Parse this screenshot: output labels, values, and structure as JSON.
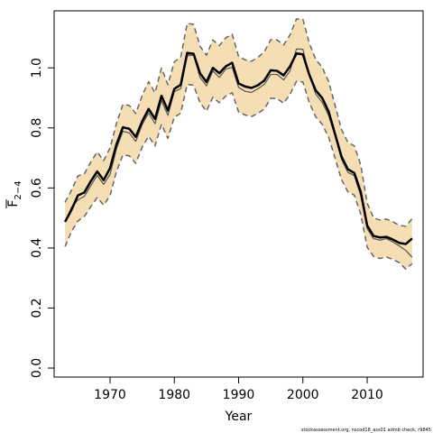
{
  "chart_data": {
    "type": "line",
    "title": "",
    "xlabel": "Year",
    "ylabel": "F",
    "ylabel_subscript": "2−4",
    "footnote": "stockassessment.org, nscod18_ass01 admb check, r9845",
    "xlim": [
      1961.3,
      2018.7
    ],
    "ylim": [
      -0.03,
      1.19
    ],
    "xticks": [
      1970,
      1980,
      1990,
      2000,
      2010
    ],
    "yticks": [
      0.0,
      0.2,
      0.4,
      0.6,
      0.8,
      1.0
    ],
    "ytick_labels": [
      "0.0",
      "0.2",
      "0.4",
      "0.6",
      "0.8",
      "1.0"
    ],
    "band_color": "#f5deb3",
    "x": [
      1963,
      1964,
      1965,
      1966,
      1967,
      1968,
      1969,
      1970,
      1971,
      1972,
      1973,
      1974,
      1975,
      1976,
      1977,
      1978,
      1979,
      1980,
      1981,
      1982,
      1983,
      1984,
      1985,
      1986,
      1987,
      1988,
      1989,
      1990,
      1991,
      1992,
      1993,
      1994,
      1995,
      1996,
      1997,
      1998,
      1999,
      2000,
      2001,
      2002,
      2003,
      2004,
      2005,
      2006,
      2007,
      2008,
      2009,
      2010,
      2011,
      2012,
      2013,
      2014,
      2015,
      2016,
      2017
    ],
    "series": [
      {
        "role": "estimate",
        "color": "#000000",
        "values": [
          0.487,
          0.527,
          0.575,
          0.585,
          0.622,
          0.655,
          0.626,
          0.666,
          0.745,
          0.802,
          0.797,
          0.77,
          0.822,
          0.863,
          0.83,
          0.907,
          0.858,
          0.93,
          0.944,
          1.05,
          1.047,
          0.982,
          0.953,
          1.0,
          0.982,
          1.005,
          1.017,
          0.948,
          0.938,
          0.933,
          0.942,
          0.958,
          0.992,
          0.99,
          0.975,
          1.005,
          1.048,
          1.045,
          0.977,
          0.925,
          0.9,
          0.855,
          0.78,
          0.705,
          0.662,
          0.65,
          0.587,
          0.475,
          0.44,
          0.435,
          0.437,
          0.428,
          0.417,
          0.413,
          0.432
        ]
      },
      {
        "role": "estimate-thin",
        "color": "#555555",
        "values": [
          0.487,
          0.535,
          0.56,
          0.572,
          0.607,
          0.642,
          0.612,
          0.645,
          0.731,
          0.789,
          0.783,
          0.755,
          0.811,
          0.85,
          0.814,
          0.891,
          0.842,
          0.921,
          0.931,
          1.04,
          1.042,
          0.968,
          0.94,
          0.99,
          0.968,
          0.996,
          1.002,
          0.935,
          0.922,
          0.918,
          0.93,
          0.945,
          0.978,
          0.978,
          0.96,
          0.99,
          1.063,
          1.062,
          0.975,
          0.913,
          0.885,
          0.842,
          0.773,
          0.696,
          0.652,
          0.641,
          0.574,
          0.464,
          0.431,
          0.426,
          0.431,
          0.42,
          0.407,
          0.392,
          0.369
        ]
      },
      {
        "role": "upper",
        "color": "#666666",
        "values": [
          0.552,
          0.592,
          0.64,
          0.647,
          0.686,
          0.72,
          0.691,
          0.733,
          0.815,
          0.878,
          0.875,
          0.848,
          0.908,
          0.954,
          0.917,
          0.999,
          0.944,
          1.02,
          1.036,
          1.148,
          1.145,
          1.072,
          1.042,
          1.093,
          1.074,
          1.1,
          1.112,
          1.038,
          1.027,
          1.022,
          1.035,
          1.053,
          1.094,
          1.093,
          1.076,
          1.11,
          1.163,
          1.162,
          1.082,
          1.028,
          1.002,
          0.955,
          0.876,
          0.795,
          0.752,
          0.74,
          0.677,
          0.55,
          0.5,
          0.493,
          0.496,
          0.487,
          0.476,
          0.472,
          0.498
        ]
      },
      {
        "role": "lower",
        "color": "#666666",
        "values": [
          0.405,
          0.455,
          0.49,
          0.505,
          0.538,
          0.568,
          0.543,
          0.574,
          0.655,
          0.71,
          0.707,
          0.682,
          0.736,
          0.772,
          0.74,
          0.812,
          0.765,
          0.836,
          0.849,
          0.945,
          0.942,
          0.884,
          0.856,
          0.902,
          0.884,
          0.906,
          0.917,
          0.853,
          0.843,
          0.838,
          0.848,
          0.863,
          0.899,
          0.898,
          0.882,
          0.912,
          0.955,
          0.953,
          0.884,
          0.837,
          0.812,
          0.77,
          0.7,
          0.628,
          0.587,
          0.576,
          0.513,
          0.403,
          0.372,
          0.365,
          0.37,
          0.362,
          0.351,
          0.33,
          0.348
        ]
      }
    ]
  }
}
